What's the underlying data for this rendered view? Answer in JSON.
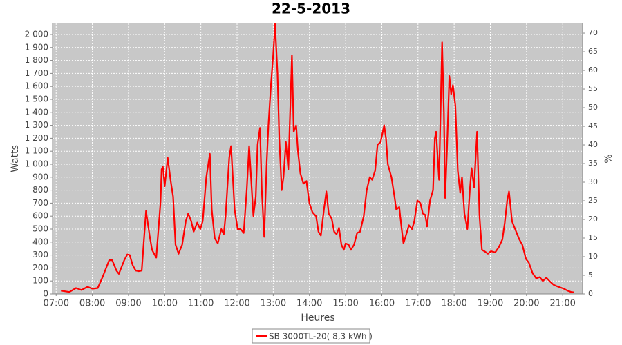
{
  "chart_data": {
    "type": "line",
    "title": "22-5-2013",
    "xlabel": "Heures",
    "ylabel": "Watts",
    "y2label": "%",
    "x": [
      "07:08",
      "07:22",
      "07:33",
      "07:42",
      "07:52",
      "08:00",
      "08:09",
      "08:17",
      "08:28",
      "08:33",
      "08:40",
      "08:44",
      "08:53",
      "08:58",
      "09:02",
      "09:07",
      "09:12",
      "09:17",
      "09:22",
      "09:29",
      "09:35",
      "09:39",
      "09:46",
      "09:53",
      "09:55",
      "09:57",
      "10:00",
      "10:05",
      "10:10",
      "10:14",
      "10:18",
      "10:23",
      "10:29",
      "10:35",
      "10:39",
      "10:44",
      "10:48",
      "10:54",
      "10:59",
      "11:03",
      "11:09",
      "11:15",
      "11:18",
      "11:23",
      "11:28",
      "11:34",
      "11:38",
      "11:41",
      "11:47",
      "11:50",
      "11:56",
      "12:01",
      "12:06",
      "12:11",
      "12:16",
      "12:20",
      "12:27",
      "12:31",
      "12:34",
      "12:38",
      "12:41",
      "12:45",
      "12:49",
      "12:52",
      "12:56",
      "13:00",
      "13:03",
      "13:07",
      "13:10",
      "13:14",
      "13:17",
      "13:21",
      "13:25",
      "13:28",
      "13:31",
      "13:34",
      "13:38",
      "13:41",
      "13:45",
      "13:50",
      "13:55",
      "14:00",
      "14:05",
      "14:11",
      "14:15",
      "14:19",
      "14:24",
      "14:28",
      "14:32",
      "14:37",
      "14:41",
      "14:45",
      "14:49",
      "14:53",
      "14:57",
      "15:00",
      "15:05",
      "15:09",
      "15:14",
      "15:19",
      "15:24",
      "15:30",
      "15:35",
      "15:40",
      "15:44",
      "15:49",
      "15:53",
      "15:58",
      "16:04",
      "16:07",
      "16:10",
      "16:16",
      "16:21",
      "16:24",
      "16:29",
      "16:33",
      "16:36",
      "16:40",
      "16:45",
      "16:50",
      "16:54",
      "16:59",
      "17:04",
      "17:08",
      "17:12",
      "17:15",
      "17:20",
      "17:25",
      "17:28",
      "17:30",
      "17:35",
      "17:40",
      "17:43",
      "17:45",
      "17:48",
      "17:52",
      "17:55",
      "17:58",
      "18:02",
      "18:06",
      "18:10",
      "18:13",
      "18:17",
      "18:22",
      "18:26",
      "18:29",
      "18:33",
      "18:38",
      "18:42",
      "18:46",
      "18:50",
      "18:56",
      "19:01",
      "19:08",
      "19:14",
      "19:20",
      "19:24",
      "19:28",
      "19:31",
      "19:36",
      "19:42",
      "19:48",
      "19:53",
      "19:59",
      "20:04",
      "20:10",
      "20:16",
      "20:22",
      "20:27",
      "20:33",
      "20:39",
      "20:45",
      "20:50",
      "20:56",
      "21:02",
      "21:08",
      "21:14",
      "21:19"
    ],
    "series": [
      {
        "name": "SB 3000TL-20( 8,3 kWh )",
        "color": "#ff0000",
        "values": [
          25,
          15,
          45,
          30,
          55,
          40,
          45,
          130,
          260,
          260,
          180,
          155,
          260,
          305,
          300,
          220,
          180,
          175,
          180,
          640,
          450,
          340,
          280,
          700,
          960,
          980,
          830,
          1050,
          870,
          750,
          380,
          310,
          380,
          560,
          620,
          560,
          480,
          550,
          500,
          560,
          900,
          1080,
          650,
          430,
          390,
          500,
          460,
          600,
          1050,
          1140,
          650,
          500,
          500,
          470,
          800,
          1140,
          600,
          750,
          1150,
          1280,
          800,
          440,
          1000,
          1300,
          1600,
          1850,
          2080,
          1700,
          1200,
          800,
          900,
          1170,
          960,
          1400,
          1840,
          1250,
          1300,
          1100,
          930,
          850,
          870,
          700,
          630,
          600,
          480,
          450,
          650,
          790,
          620,
          580,
          480,
          460,
          510,
          380,
          340,
          390,
          380,
          340,
          380,
          470,
          480,
          600,
          800,
          900,
          880,
          950,
          1150,
          1170,
          1300,
          1200,
          1000,
          900,
          750,
          650,
          670,
          500,
          390,
          450,
          530,
          500,
          560,
          720,
          700,
          620,
          610,
          520,
          720,
          800,
          1200,
          1250,
          880,
          1940,
          1400,
          740,
          1100,
          1680,
          1540,
          1610,
          1450,
          950,
          780,
          900,
          620,
          500,
          800,
          970,
          820,
          1250,
          600,
          340,
          330,
          310,
          330,
          320,
          360,
          420,
          550,
          720,
          790,
          560,
          490,
          420,
          380,
          270,
          240,
          160,
          120,
          130,
          100,
          125,
          95,
          70,
          60,
          50,
          40,
          25,
          15,
          12
        ]
      }
    ],
    "xlim": [
      "06:54",
      "21:33"
    ],
    "xticks": [
      "07:00",
      "08:00",
      "09:00",
      "10:00",
      "11:00",
      "12:00",
      "13:00",
      "14:00",
      "15:00",
      "16:00",
      "17:00",
      "18:00",
      "19:00",
      "20:00",
      "21:00"
    ],
    "ylim": [
      0,
      2085
    ],
    "yticks": [
      0,
      100,
      200,
      300,
      400,
      500,
      600,
      700,
      800,
      900,
      {
        "value": 1000,
        "label": "1 000"
      },
      {
        "value": 1100,
        "label": "1 100"
      },
      {
        "value": 1200,
        "label": "1 200"
      },
      {
        "value": 1300,
        "label": "1 300"
      },
      {
        "value": 1400,
        "label": "1 400"
      },
      {
        "value": 1500,
        "label": "1 500"
      },
      {
        "value": 1600,
        "label": "1 600"
      },
      {
        "value": 1700,
        "label": "1 700"
      },
      {
        "value": 1800,
        "label": "1 800"
      },
      {
        "value": 1900,
        "label": "1 900"
      },
      {
        "value": 2000,
        "label": "2 000"
      }
    ],
    "y2lim": [
      0,
      72.6
    ],
    "y2ticks": [
      0,
      5,
      10,
      15,
      20,
      25,
      30,
      35,
      40,
      45,
      50,
      55,
      60,
      65,
      70
    ],
    "grid": true,
    "legend": "bottom"
  }
}
